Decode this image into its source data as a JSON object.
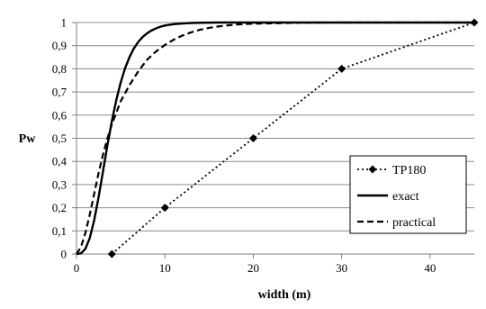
{
  "chart_data": {
    "type": "line",
    "xlabel": "width (m)",
    "ylabel": "Pw",
    "xlim": [
      0,
      45
    ],
    "ylim": [
      0,
      1
    ],
    "x_ticks": [
      0,
      10,
      20,
      30,
      40
    ],
    "x_tick_labels": [
      "0",
      "10",
      "20",
      "30",
      "40"
    ],
    "y_ticks": [
      0,
      0.1,
      0.2,
      0.3,
      0.4,
      0.5,
      0.6,
      0.7,
      0.8,
      0.9,
      1
    ],
    "y_tick_labels": [
      "0",
      "0,1",
      "0,2",
      "0,3",
      "0,4",
      "0,5",
      "0,6",
      "0,7",
      "0,8",
      "0,9",
      "1"
    ],
    "grid": "horizontal",
    "legend_position": "bottom-right",
    "series": [
      {
        "name": "TP180",
        "style": "dotted-diamond",
        "color": "#000000",
        "x": [
          4,
          10,
          20,
          30,
          45
        ],
        "y": [
          0,
          0.2,
          0.5,
          0.8,
          1
        ]
      },
      {
        "name": "exact",
        "style": "solid",
        "color": "#000000",
        "x": [
          0,
          0.5,
          1,
          1.5,
          2,
          2.5,
          3,
          3.5,
          4,
          4.5,
          5,
          5.5,
          6,
          6.5,
          7,
          7.5,
          8,
          8.5,
          9,
          9.5,
          10,
          11,
          12,
          13,
          14,
          15,
          16,
          18,
          20,
          25,
          30,
          35,
          40,
          45
        ],
        "y": [
          0,
          0.003,
          0.022,
          0.069,
          0.146,
          0.246,
          0.358,
          0.47,
          0.574,
          0.665,
          0.741,
          0.803,
          0.851,
          0.889,
          0.917,
          0.938,
          0.954,
          0.966,
          0.975,
          0.982,
          0.987,
          0.993,
          0.996,
          0.998,
          0.999,
          0.9995,
          1,
          1,
          1,
          1,
          1,
          1,
          1,
          1
        ]
      },
      {
        "name": "practical",
        "style": "dashed",
        "color": "#000000",
        "x": [
          0,
          0.5,
          1,
          1.5,
          2,
          2.5,
          3,
          3.5,
          4,
          4.5,
          5,
          6,
          7,
          8,
          9,
          10,
          11,
          12,
          13,
          14,
          15,
          16,
          18,
          20,
          25,
          30,
          35,
          40,
          45
        ],
        "y": [
          0,
          0.03,
          0.09,
          0.17,
          0.26,
          0.35,
          0.43,
          0.5,
          0.56,
          0.61,
          0.66,
          0.73,
          0.79,
          0.84,
          0.875,
          0.903,
          0.926,
          0.944,
          0.958,
          0.969,
          0.977,
          0.983,
          0.991,
          0.995,
          0.999,
          1,
          1,
          1,
          1
        ]
      }
    ]
  }
}
